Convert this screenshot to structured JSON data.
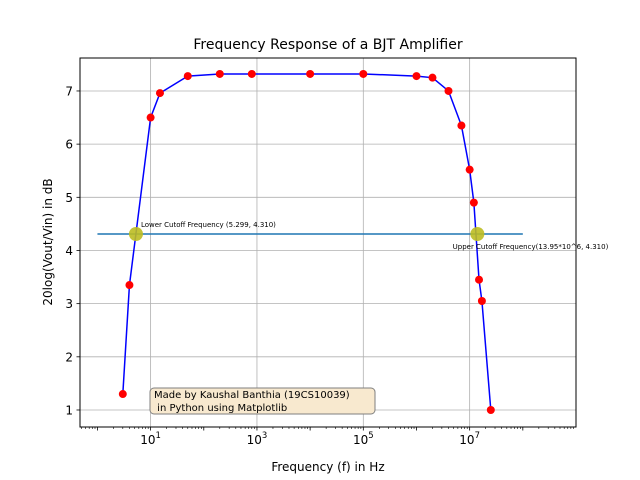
{
  "chart_data": {
    "type": "line",
    "title": "Frequency Response of a BJT Amplifier",
    "xlabel": "Frequency (f) in Hz",
    "ylabel": "20log(Vout/Vin) in dB",
    "xscale": "log",
    "xlim": [
      0.47,
      1000000000
    ],
    "ylim": [
      0.68,
      7.62
    ],
    "grid": true,
    "x_ticks": [
      {
        "value": 10,
        "base": "10",
        "exp": "1"
      },
      {
        "value": 1000,
        "base": "10",
        "exp": "3"
      },
      {
        "value": 100000,
        "base": "10",
        "exp": "5"
      },
      {
        "value": 10000000,
        "base": "10",
        "exp": "7"
      }
    ],
    "y_ticks": [
      1,
      2,
      3,
      4,
      5,
      6,
      7
    ],
    "series": [
      {
        "color": "#0000ff",
        "marker_color": "#ff0000",
        "points": [
          [
            3,
            1.3
          ],
          [
            4,
            3.35
          ],
          [
            10,
            6.5
          ],
          [
            15,
            6.96
          ],
          [
            50,
            7.28
          ],
          [
            200,
            7.32
          ],
          [
            800,
            7.32
          ],
          [
            10000,
            7.32
          ],
          [
            100000,
            7.32
          ],
          [
            1000000,
            7.28
          ],
          [
            2000000,
            7.25
          ],
          [
            4000000,
            7.0
          ],
          [
            7000000,
            6.35
          ],
          [
            10000000,
            5.52
          ],
          [
            12000000,
            4.9
          ],
          [
            15000000,
            3.45
          ],
          [
            17000000,
            3.05
          ],
          [
            25000000,
            1.0
          ]
        ]
      }
    ],
    "cutoff_line": {
      "y": 4.31,
      "x_start": 1,
      "x_end": 100000000,
      "color": "#1f77b4"
    },
    "cutoff_points": [
      {
        "x": 5.299,
        "y": 4.31,
        "label": "Lower Cutoff Frequency (5.299, 4.310)"
      },
      {
        "x": 13950000,
        "y": 4.31,
        "label": "Upper Cutoff Frequency(13.95*10^6, 4.310)"
      }
    ],
    "credit_box": {
      "lines": [
        "Made by Kaushal Banthia (19CS10039)",
        " in Python using Matplotlib"
      ],
      "fill": "#f8e9cf",
      "edge": "#7f7f7f"
    }
  }
}
